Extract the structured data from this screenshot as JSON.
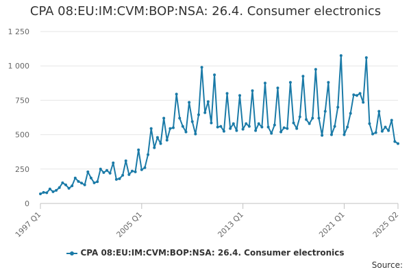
{
  "chart_data": {
    "type": "line",
    "title": "CPA 08:EU:IM:CVM:BOP:NSA: 26.4. Consumer electronics",
    "xlabel": "",
    "ylabel": "",
    "ylim": [
      0,
      1250
    ],
    "yticks": [
      0,
      250,
      500,
      750,
      1000,
      1250
    ],
    "ytick_labels": [
      "0",
      "250",
      "500",
      "750",
      "1 000",
      "1 250"
    ],
    "xtick_labels": [
      "1997 Q1",
      "2005 Q1",
      "2013 Q1",
      "2021 Q1",
      "2025 Q2"
    ],
    "xtick_index": [
      0,
      32,
      64,
      96,
      113
    ],
    "grid": "horizontal",
    "legend_position": "bottom",
    "series": [
      {
        "name": "CPA 08:EU:IM:CVM:BOP:NSA: 26.4. Consumer electronics",
        "color": "#1a7aa7",
        "values": [
          70,
          80,
          78,
          105,
          85,
          95,
          115,
          150,
          135,
          110,
          128,
          185,
          160,
          148,
          135,
          230,
          185,
          150,
          158,
          250,
          225,
          240,
          220,
          295,
          175,
          180,
          205,
          310,
          210,
          235,
          230,
          390,
          245,
          260,
          355,
          545,
          405,
          480,
          435,
          620,
          460,
          545,
          550,
          795,
          620,
          560,
          520,
          735,
          595,
          505,
          645,
          990,
          660,
          740,
          585,
          935,
          555,
          560,
          525,
          800,
          545,
          580,
          530,
          785,
          540,
          580,
          560,
          820,
          530,
          580,
          555,
          875,
          555,
          510,
          570,
          840,
          520,
          550,
          545,
          880,
          585,
          545,
          630,
          925,
          610,
          580,
          620,
          975,
          620,
          495,
          670,
          880,
          500,
          560,
          700,
          1075,
          500,
          555,
          655,
          790,
          785,
          800,
          735,
          1060,
          580,
          505,
          515,
          670,
          525,
          555,
          530,
          605,
          450,
          435
        ]
      }
    ]
  },
  "legend": {
    "label": "CPA 08:EU:IM:CVM:BOP:NSA: 26.4. Consumer electronics"
  },
  "footer": {
    "source_label": "Source:"
  }
}
